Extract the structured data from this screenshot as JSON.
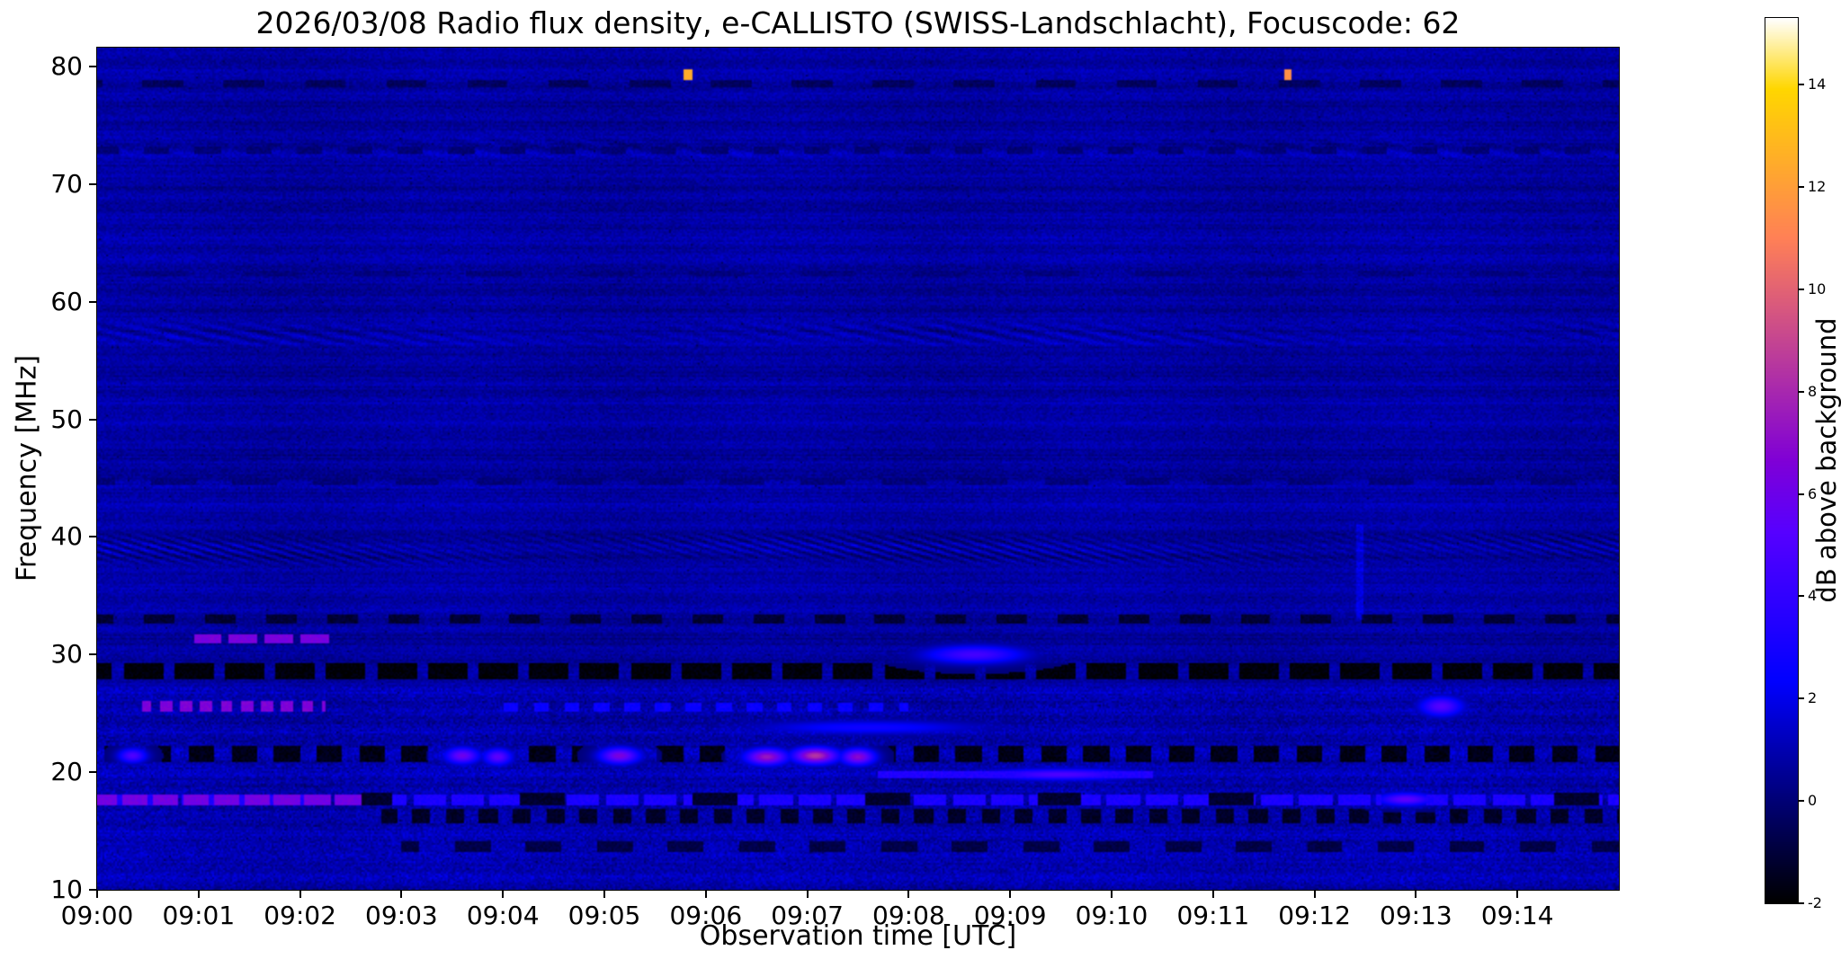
{
  "chart_data": {
    "type": "heatmap",
    "title": "2026/03/08  Radio flux density, e-CALLISTO (SWISS-Landschlacht), Focuscode: 62",
    "date": "2026/03/08",
    "station": "SWISS-Landschlacht",
    "focuscode": 62,
    "xlabel": "Observation time [UTC]",
    "ylabel": "Frequency [MHz]",
    "x_ticks": [
      "09:00",
      "09:01",
      "09:02",
      "09:03",
      "09:04",
      "09:05",
      "09:06",
      "09:07",
      "09:08",
      "09:09",
      "09:10",
      "09:11",
      "09:12",
      "09:13",
      "09:14"
    ],
    "x_range_minutes": [
      0,
      15
    ],
    "y_ticks": [
      10,
      20,
      30,
      40,
      50,
      60,
      70,
      80
    ],
    "y_range_mhz": [
      10,
      81.6
    ],
    "colorbar": {
      "label": "dB above background",
      "ticks": [
        -2,
        0,
        2,
        4,
        6,
        8,
        10,
        12,
        14
      ],
      "range_db": [
        -2,
        15.3
      ],
      "colormap": "gnuplot2"
    },
    "background_level_db": 0.7,
    "features": [
      {
        "kind": "noiseband",
        "f0": 10,
        "f1": 27.3,
        "lift": 0.25,
        "amp": 1.0
      },
      {
        "kind": "wavy",
        "f0": 37.3,
        "f1": 40.6,
        "t0": 0,
        "t1": 15,
        "amp": 1.15,
        "period_min": 0.21,
        "fscale": 1.8
      },
      {
        "kind": "wavy",
        "f0": 55.8,
        "f1": 58.6,
        "t0": 0,
        "t1": 15,
        "amp": 0.7,
        "period_min": 0.42,
        "fscale": 1.2
      },
      {
        "kind": "wavy",
        "f0": 71.8,
        "f1": 74.2,
        "t0": 0,
        "t1": 15,
        "amp": 0.4,
        "period_min": 0.5,
        "fscale": 1.0
      },
      {
        "kind": "band",
        "f0": 27.9,
        "f1": 29.3,
        "t0": 0,
        "t1": 15,
        "level": -1.85,
        "dash_period": 0.5,
        "dash_duty": 0.78
      },
      {
        "kind": "band",
        "f0": 20.9,
        "f1": 22.3,
        "t0": 0,
        "t1": 15,
        "level": -1.6,
        "dash_period": 0.42,
        "dash_duty": 0.6
      },
      {
        "kind": "band",
        "f0": 32.7,
        "f1": 33.4,
        "t0": 0,
        "t1": 15,
        "level": -1.1,
        "dash_period": 0.6,
        "dash_duty": 0.5
      },
      {
        "kind": "band",
        "f0": 15.6,
        "f1": 16.9,
        "t0": 2.8,
        "t1": 15,
        "level": -1.3,
        "dash_period": 0.33,
        "dash_duty": 0.55
      },
      {
        "kind": "band",
        "f0": 13.2,
        "f1": 14.2,
        "t0": 3,
        "t1": 15,
        "level": -0.8,
        "dash_period": 0.7,
        "dash_duty": 0.5
      },
      {
        "kind": "band",
        "f0": 44.4,
        "f1": 45.0,
        "t0": 0,
        "t1": 15,
        "level": 0.1,
        "dash_period": 0.8,
        "dash_duty": 0.55
      },
      {
        "kind": "band",
        "f0": 62.1,
        "f1": 62.7,
        "t0": 0,
        "t1": 15,
        "level": 0.15,
        "dash_period": 1.1,
        "dash_duty": 0.5
      },
      {
        "kind": "band",
        "f0": 72.6,
        "f1": 73.2,
        "t0": 0,
        "t1": 15,
        "level": 0.0,
        "dash_period": 0.5,
        "dash_duty": 0.5
      },
      {
        "kind": "band",
        "f0": 78.2,
        "f1": 78.9,
        "t0": 0,
        "t1": 15,
        "level": -0.4,
        "dash_period": 0.8,
        "dash_duty": 0.5
      },
      {
        "kind": "band",
        "f0": 17.25,
        "f1": 18.15,
        "t0": 0,
        "t1": 15,
        "level": 3.2,
        "dash_period": 0.38,
        "dash_duty": 0.85
      },
      {
        "kind": "band",
        "f0": 17.25,
        "f1": 18.15,
        "t0": 0,
        "t1": 2.6,
        "level": 6.2,
        "dash_period": 0.3,
        "dash_duty": 0.85
      },
      {
        "kind": "band",
        "f0": 17.2,
        "f1": 18.2,
        "t0": 2.6,
        "t1": 15,
        "level": -1.2,
        "dash_period": 1.7,
        "dash_duty": 0.26
      },
      {
        "kind": "band",
        "f0": 25.1,
        "f1": 26.1,
        "t0": 0.45,
        "t1": 2.25,
        "level": 6.6,
        "dash_period": 0.2,
        "dash_duty": 0.6
      },
      {
        "kind": "band",
        "f0": 30.9,
        "f1": 31.7,
        "t0": 0.95,
        "t1": 2.3,
        "level": 6.4,
        "dash_period": 0.35,
        "dash_duty": 0.8
      },
      {
        "kind": "band",
        "f0": 25.2,
        "f1": 25.9,
        "t0": 4,
        "t1": 8,
        "level": 2.6,
        "dash_period": 0.3,
        "dash_duty": 0.5
      },
      {
        "kind": "band",
        "f0": 19.5,
        "f1": 20.1,
        "t0": 7.7,
        "t1": 10.4,
        "level": 3.4,
        "dash_period": 9,
        "dash_duty": 1
      },
      {
        "kind": "blob",
        "f": 30.0,
        "t": 8.65,
        "df": 0.55,
        "dt": 0.35,
        "level": 4.6
      },
      {
        "kind": "blob",
        "f": 19.8,
        "t": 9.5,
        "df": 0.35,
        "dt": 0.55,
        "level": 5.0
      },
      {
        "kind": "blob",
        "f": 21.4,
        "t": 0.35,
        "df": 0.45,
        "dt": 0.1,
        "level": 5.0
      },
      {
        "kind": "blob",
        "f": 21.4,
        "t": 3.6,
        "df": 0.5,
        "dt": 0.12,
        "level": 6.0
      },
      {
        "kind": "blob",
        "f": 21.3,
        "t": 3.95,
        "df": 0.5,
        "dt": 0.1,
        "level": 5.5
      },
      {
        "kind": "blob",
        "f": 21.4,
        "t": 5.15,
        "df": 0.5,
        "dt": 0.14,
        "level": 6.5
      },
      {
        "kind": "blob",
        "f": 21.3,
        "t": 6.6,
        "df": 0.5,
        "dt": 0.15,
        "level": 7.5
      },
      {
        "kind": "blob",
        "f": 21.4,
        "t": 7.08,
        "df": 0.5,
        "dt": 0.16,
        "level": 8.5
      },
      {
        "kind": "blob",
        "f": 21.3,
        "t": 7.5,
        "df": 0.5,
        "dt": 0.12,
        "level": 7.0
      },
      {
        "kind": "blob",
        "f": 23.8,
        "t": 7.6,
        "df": 0.45,
        "dt": 0.8,
        "level": 2.8
      },
      {
        "kind": "blob",
        "f": 17.7,
        "t": 12.9,
        "df": 0.4,
        "dt": 0.2,
        "level": 5.5
      },
      {
        "kind": "blob",
        "f": 25.6,
        "t": 13.25,
        "df": 0.6,
        "dt": 0.15,
        "level": 5.2
      },
      {
        "kind": "vline",
        "f0": 33,
        "f1": 41,
        "t": 12.45,
        "w": 0.03,
        "amp": 1.0
      },
      {
        "kind": "point",
        "f0": 78.8,
        "f1": 79.8,
        "t0": 5.78,
        "t1": 5.86,
        "level": 12.5
      },
      {
        "kind": "point",
        "f0": 78.8,
        "f1": 79.8,
        "t0": 11.7,
        "t1": 11.78,
        "level": 11.5
      }
    ]
  }
}
